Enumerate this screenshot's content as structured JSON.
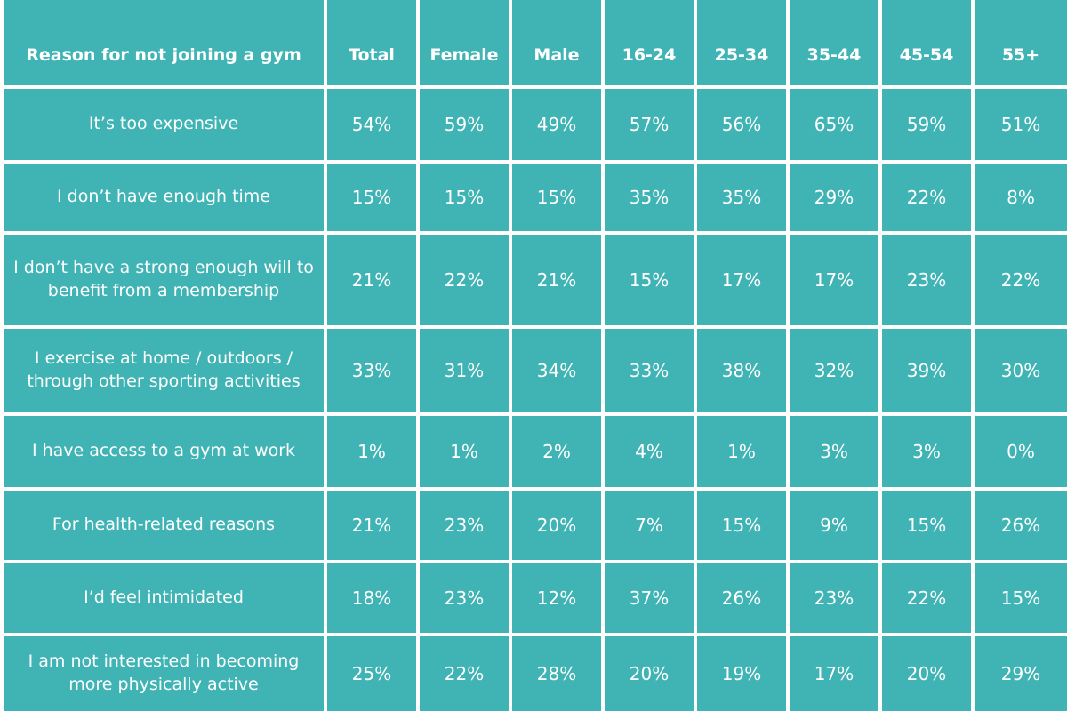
{
  "chart_data": {
    "type": "table",
    "colors": {
      "cell_fill": "#40B4B4",
      "grid": "#FFFFFF",
      "text": "#FFFFFF"
    },
    "columns": [
      "Reason for not joining a gym",
      "Total",
      "Female",
      "Male",
      "16-24",
      "25-34",
      "35-44",
      "45-54",
      "55+"
    ],
    "rows": [
      {
        "label": "It’s too expensive",
        "values": [
          "54%",
          "59%",
          "49%",
          "57%",
          "56%",
          "65%",
          "59%",
          "51%"
        ]
      },
      {
        "label": "I don’t have enough time",
        "values": [
          "15%",
          "15%",
          "15%",
          "35%",
          "35%",
          "29%",
          "22%",
          "8%"
        ]
      },
      {
        "label": "I don’t have a strong enough will to benefit from a membership",
        "values": [
          "21%",
          "22%",
          "21%",
          "15%",
          "17%",
          "17%",
          "23%",
          "22%"
        ]
      },
      {
        "label": "I exercise at home / outdoors / through other sporting activities",
        "values": [
          "33%",
          "31%",
          "34%",
          "33%",
          "38%",
          "32%",
          "39%",
          "30%"
        ]
      },
      {
        "label": "I have access to a gym at work",
        "values": [
          "1%",
          "1%",
          "2%",
          "4%",
          "1%",
          "3%",
          "3%",
          "0%"
        ]
      },
      {
        "label": "For health-related reasons",
        "values": [
          "21%",
          "23%",
          "20%",
          "7%",
          "15%",
          "9%",
          "15%",
          "26%"
        ]
      },
      {
        "label": "I’d feel intimidated",
        "values": [
          "18%",
          "23%",
          "12%",
          "37%",
          "26%",
          "23%",
          "22%",
          "15%"
        ]
      },
      {
        "label": "I am not interested in becoming more physically active",
        "values": [
          "25%",
          "22%",
          "28%",
          "20%",
          "19%",
          "17%",
          "20%",
          "29%"
        ]
      }
    ]
  }
}
